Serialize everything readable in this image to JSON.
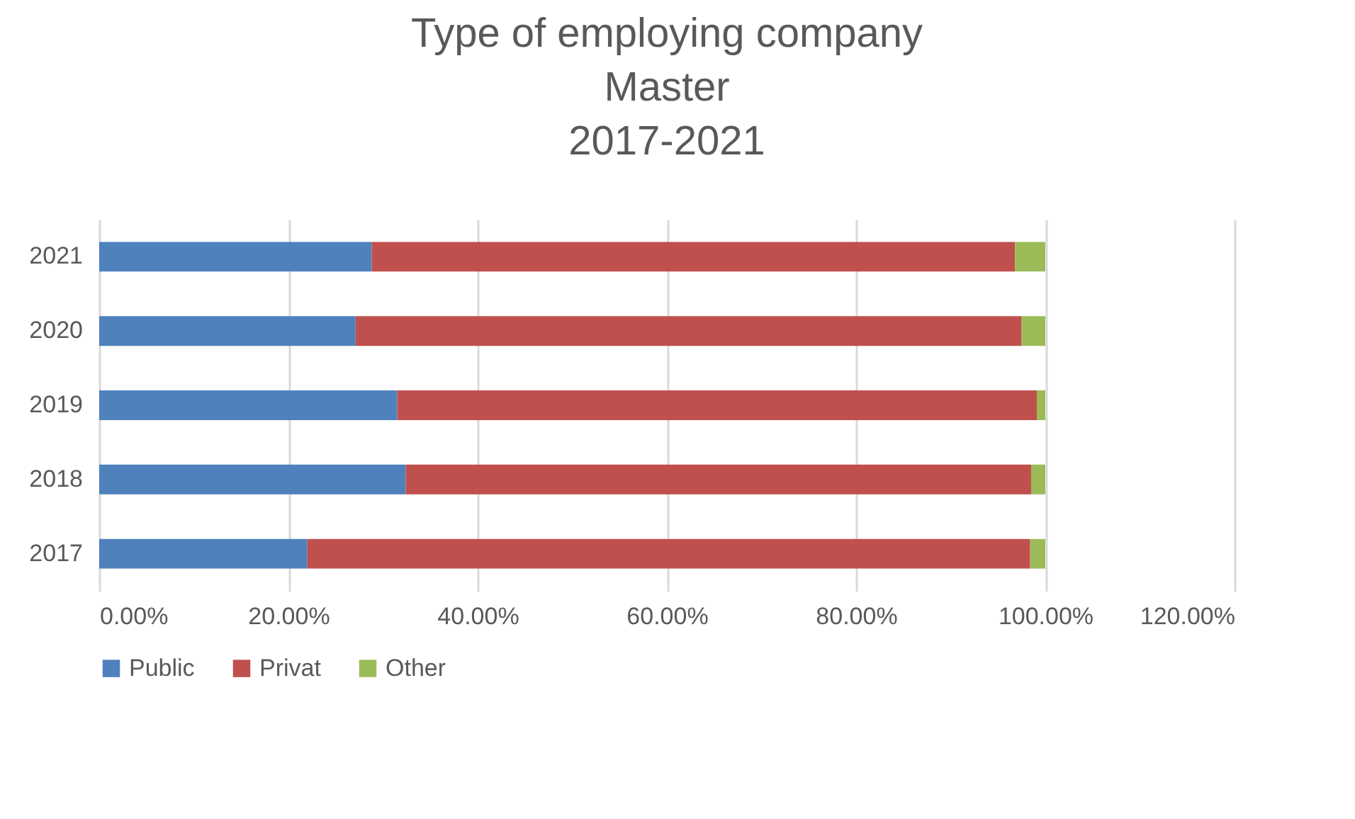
{
  "chart_data": {
    "type": "bar",
    "orientation": "horizontal",
    "stacked": true,
    "title": "Type of employing company\nMaster\n2017-2021",
    "categories": [
      "2021",
      "2020",
      "2019",
      "2018",
      "2017"
    ],
    "series": [
      {
        "name": "Public",
        "color": "#4f81bd",
        "values": [
          28.8,
          27.1,
          31.5,
          32.4,
          22.0
        ]
      },
      {
        "name": "Privat",
        "color": "#c0504d",
        "values": [
          68.0,
          70.4,
          67.6,
          66.1,
          76.4
        ]
      },
      {
        "name": "Other",
        "color": "#9bbb59",
        "values": [
          3.2,
          2.5,
          0.9,
          1.5,
          1.6
        ]
      }
    ],
    "xlim": [
      0,
      120
    ],
    "xticks": [
      {
        "value": 0,
        "label": "0.00%"
      },
      {
        "value": 20,
        "label": "20.00%"
      },
      {
        "value": 40,
        "label": "40.00%"
      },
      {
        "value": 60,
        "label": "60.00%"
      },
      {
        "value": 80,
        "label": "80.00%"
      },
      {
        "value": 100,
        "label": "100.00%"
      },
      {
        "value": 120,
        "label": "120.00%"
      }
    ],
    "grid": "x",
    "legend": "bottom"
  }
}
